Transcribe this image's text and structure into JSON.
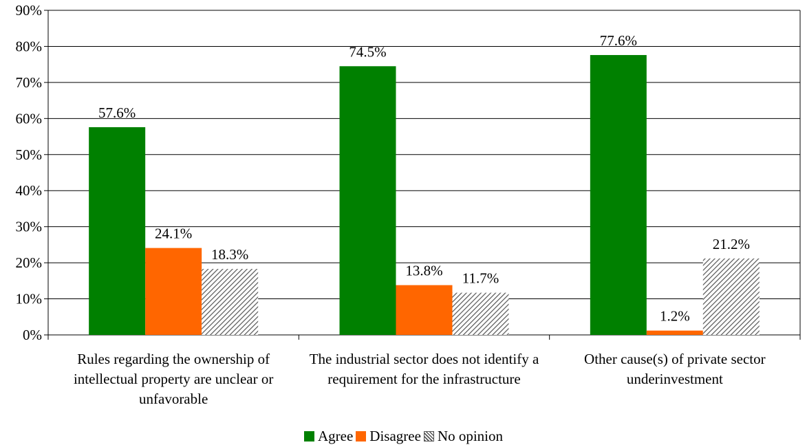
{
  "chart_data": {
    "type": "bar",
    "title": "",
    "xlabel": "",
    "ylabel": "",
    "ylim": [
      0,
      90
    ],
    "yticks": [
      "0%",
      "10%",
      "20%",
      "30%",
      "40%",
      "50%",
      "60%",
      "70%",
      "80%",
      "90%"
    ],
    "categories": [
      "Rules regarding the ownership of intellectual property are unclear or unfavorable",
      "The industrial sector does not identify a requirement for the infrastructure",
      "Other cause(s) of private sector underinvestment"
    ],
    "series": [
      {
        "name": "Agree",
        "color": "#008000",
        "pattern": "solid",
        "values": [
          57.6,
          74.5,
          77.6
        ],
        "labels": [
          "57.6%",
          "74.5%",
          "77.6%"
        ]
      },
      {
        "name": "Disagree",
        "color": "#ff6600",
        "pattern": "solid",
        "values": [
          24.1,
          13.8,
          1.2
        ],
        "labels": [
          "24.1%",
          "13.8%",
          "1.2%"
        ]
      },
      {
        "name": "No opinion",
        "color": "#808080",
        "pattern": "diagonal-hatch",
        "values": [
          18.3,
          11.7,
          21.2
        ],
        "labels": [
          "18.3%",
          "11.7%",
          "21.2%"
        ]
      }
    ],
    "grid": true,
    "legend_position": "bottom"
  }
}
